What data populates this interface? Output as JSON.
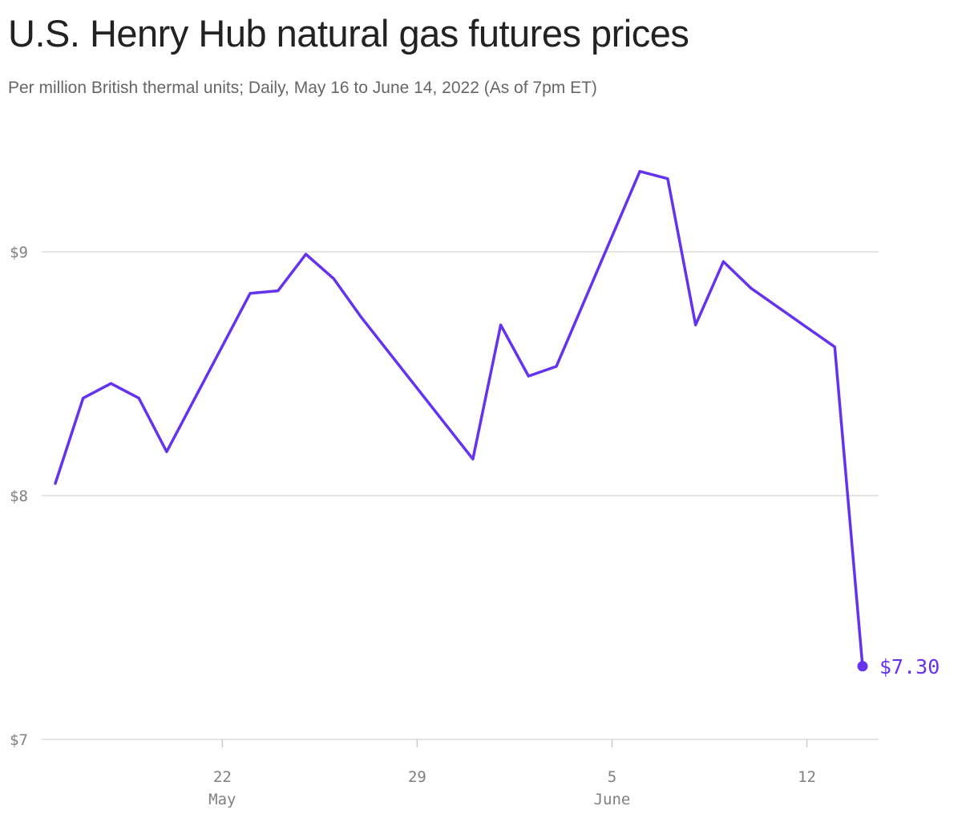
{
  "chart_data": {
    "type": "line",
    "title": "U.S. Henry Hub natural gas futures prices",
    "subtitle": "Per million British thermal units; Daily, May 16 to June 14, 2022 (As of 7pm ET)",
    "xlabel": "",
    "ylabel": "",
    "x_range": [
      "2022-05-16",
      "2022-06-14"
    ],
    "ylim": [
      7,
      10
    ],
    "y_ticks": [
      {
        "value": 7,
        "label": "$7"
      },
      {
        "value": 8,
        "label": "$8"
      },
      {
        "value": 9,
        "label": "$9"
      }
    ],
    "x_ticks": [
      {
        "date": "2022-05-22",
        "label": "22",
        "sublabel": "May"
      },
      {
        "date": "2022-05-29",
        "label": "29",
        "sublabel": ""
      },
      {
        "date": "2022-06-05",
        "label": "5",
        "sublabel": "June"
      },
      {
        "date": "2022-06-12",
        "label": "12",
        "sublabel": ""
      }
    ],
    "grid": "horizontal",
    "line_color": "#6533ee",
    "series": [
      {
        "x": [
          "2022-05-16",
          "2022-05-17",
          "2022-05-18",
          "2022-05-19",
          "2022-05-20",
          "2022-05-23",
          "2022-05-24",
          "2022-05-25",
          "2022-05-26",
          "2022-05-27",
          "2022-05-31",
          "2022-06-01",
          "2022-06-02",
          "2022-06-03",
          "2022-06-06",
          "2022-06-07",
          "2022-06-08",
          "2022-06-09",
          "2022-06-10",
          "2022-06-13",
          "2022-06-14"
        ],
        "y": [
          8.05,
          8.4,
          8.46,
          8.4,
          8.18,
          8.83,
          8.84,
          8.99,
          8.89,
          8.73,
          8.15,
          8.7,
          8.49,
          8.53,
          9.33,
          9.3,
          8.7,
          8.96,
          8.85,
          8.61,
          7.3
        ]
      }
    ],
    "end_label": "$7.30"
  }
}
